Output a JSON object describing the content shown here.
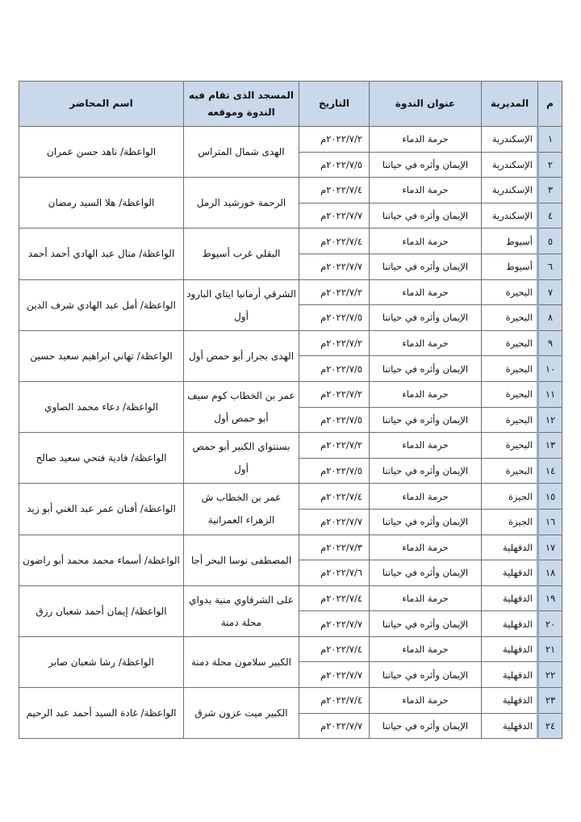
{
  "headers": {
    "num": "م",
    "directorate": "المديرية",
    "title": "عنوان الندوة",
    "date": "التاريخ",
    "mosque": "المسجد الذى تقام فيه الندوة وموقعه",
    "lecturer": "اسم المحاضر"
  },
  "colors": {
    "header_bg": "#c9d8ea"
  },
  "groups": [
    {
      "mosque": "الهدى شمال المتراس",
      "lecturer": "الواعظة/ ناهد حسن عمران",
      "rows": [
        {
          "num": "١",
          "directorate": "الإسكندرية",
          "title": "حرمة الدماء",
          "date": "٢٠٢٢/٧/٢م"
        },
        {
          "num": "٢",
          "directorate": "الإسكندرية",
          "title": "الإيمان وأثره في حياتنا",
          "date": "٢٠٢٢/٧/٥م"
        }
      ]
    },
    {
      "mosque": "الرحمة خورشيد الرمل",
      "lecturer": "الواعظة/ هلا السيد رمضان",
      "rows": [
        {
          "num": "٣",
          "directorate": "الإسكندرية",
          "title": "حرمة الدماء",
          "date": "٢٠٢٢/٧/٤م"
        },
        {
          "num": "٤",
          "directorate": "الإسكندرية",
          "title": "الإيمان وأثره في حياتنا",
          "date": "٢٠٢٢/٧/٧م"
        }
      ]
    },
    {
      "mosque": "البقلي غرب أسيوط",
      "lecturer": "الواعظة/ منال عبد الهادي أحمد أحمد",
      "rows": [
        {
          "num": "٥",
          "directorate": "أسيوط",
          "title": "حرمة الدماء",
          "date": "٢٠٢٢/٧/٤م"
        },
        {
          "num": "٦",
          "directorate": "أسيوط",
          "title": "الإيمان وأثره في حياتنا",
          "date": "٢٠٢٢/٧/٧م"
        }
      ]
    },
    {
      "mosque": "الشرقي أرمانيا ايتاي البارود أول",
      "lecturer": "الواعظة/ أمل عبد الهادي شرف الدين",
      "rows": [
        {
          "num": "٧",
          "directorate": "البحيرة",
          "title": "حرمة الدماء",
          "date": "٢٠٢٢/٧/٢م"
        },
        {
          "num": "٨",
          "directorate": "البحيرة",
          "title": "الإيمان وأثره في حياتنا",
          "date": "٢٠٢٢/٧/٥م"
        }
      ]
    },
    {
      "mosque": "الهدى بجرار أبو حمص أول",
      "lecturer": "الواعظة/ تهاني ابراهيم سعيد حسين",
      "rows": [
        {
          "num": "٩",
          "directorate": "البحيرة",
          "title": "حرمة الدماء",
          "date": "٢٠٢٢/٧/٢م"
        },
        {
          "num": "١٠",
          "directorate": "البحيرة",
          "title": "الإيمان وأثره في حياتنا",
          "date": "٢٠٢٢/٧/٥م"
        }
      ]
    },
    {
      "mosque": "عمر بن الخطاب كوم سيف أبو حمص أول",
      "lecturer": "الواعظة/ دعاء محمد الصاوي",
      "rows": [
        {
          "num": "١١",
          "directorate": "البحيرة",
          "title": "حرمة الدماء",
          "date": "٢٠٢٢/٧/٢م"
        },
        {
          "num": "١٢",
          "directorate": "البحيرة",
          "title": "الإيمان وأثره في حياتنا",
          "date": "٢٠٢٢/٧/٥م"
        }
      ]
    },
    {
      "mosque": "بسنتواي الكبير أبو حمص أول",
      "lecturer": "الواعظة/ فادية فتحي سعيد صالح",
      "rows": [
        {
          "num": "١٣",
          "directorate": "البحيرة",
          "title": "حرمة الدماء",
          "date": "٢٠٢٢/٧/٢م"
        },
        {
          "num": "١٤",
          "directorate": "البحيرة",
          "title": "الإيمان وأثره في حياتنا",
          "date": "٢٠٢٢/٧/٥م"
        }
      ]
    },
    {
      "mosque": "عمر بن الخطاب ش الزهراء العمرانية",
      "lecturer": "الواعظة/ أفنان عمر عبد الغني أبو زيد",
      "rows": [
        {
          "num": "١٥",
          "directorate": "الجيزة",
          "title": "حرمة الدماء",
          "date": "٢٠٢٢/٧/٤م"
        },
        {
          "num": "١٦",
          "directorate": "الجيزة",
          "title": "الإيمان وأثره في حياتنا",
          "date": "٢٠٢٢/٧/٧م"
        }
      ]
    },
    {
      "mosque": "المصطفى نوسا البحر أجا",
      "lecturer": "الواعظة/ أسماء محمد محمد أبو راضون",
      "rows": [
        {
          "num": "١٧",
          "directorate": "الدقهلية",
          "title": "حرمة الدماء",
          "date": "٢٠٢٢/٧/٣م"
        },
        {
          "num": "١٨",
          "directorate": "الدقهلية",
          "title": "الإيمان وأثره في حياتنا",
          "date": "٢٠٢٢/٧/٦م"
        }
      ]
    },
    {
      "mosque": "على الشرقاوي منية بدواي محلة دمنة",
      "lecturer": "الواعظة/ إيمان أحمد شعبان رزق",
      "rows": [
        {
          "num": "١٩",
          "directorate": "الدقهلية",
          "title": "حرمة الدماء",
          "date": "٢٠٢٢/٧/٤م"
        },
        {
          "num": "٢٠",
          "directorate": "الدقهلية",
          "title": "الإيمان وأثره في حياتنا",
          "date": "٢٠٢٢/٧/٧م"
        }
      ]
    },
    {
      "mosque": "الكبير سلامون محلة دمنة",
      "lecturer": "الواعظة/ رشا شعبان صابر",
      "rows": [
        {
          "num": "٢١",
          "directorate": "الدقهلية",
          "title": "حرمة الدماء",
          "date": "٢٠٢٢/٧/٤م"
        },
        {
          "num": "٢٢",
          "directorate": "الدقهلية",
          "title": "الإيمان وأثره في حياتنا",
          "date": "٢٠٢٢/٧/٧م"
        }
      ]
    },
    {
      "mosque": "الكبير ميت عزون شرق",
      "lecturer": "الواعظة/ غادة السيد أحمد عبد الرحيم",
      "rows": [
        {
          "num": "٢٣",
          "directorate": "الدقهلية",
          "title": "حرمة الدماء",
          "date": "٢٠٢٢/٧/٤م"
        },
        {
          "num": "٢٤",
          "directorate": "الدقهلية",
          "title": "الإيمان وأثره في حياتنا",
          "date": "٢٠٢٢/٧/٧م"
        }
      ]
    }
  ]
}
